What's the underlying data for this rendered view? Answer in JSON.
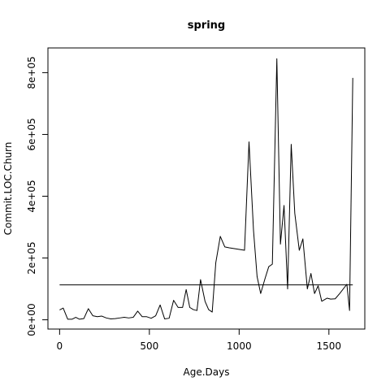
{
  "chart_data": {
    "type": "line",
    "title": "spring",
    "xlabel": "Age.Days",
    "ylabel": "Commit.LOC.Churn",
    "xlim": [
      -65,
      1700
    ],
    "ylim": [
      -30000,
      880000
    ],
    "x_ticks": [
      0,
      500,
      1000,
      1500
    ],
    "x_tick_labels": [
      "0",
      "500",
      "1000",
      "1500"
    ],
    "y_ticks": [
      0,
      200000,
      400000,
      600000,
      800000
    ],
    "y_tick_labels": [
      "0e+00",
      "2e+05",
      "4e+05",
      "6e+05",
      "8e+05"
    ],
    "grid": false,
    "legend": "none",
    "series": [
      {
        "x": [
          0,
          20,
          45,
          70,
          90,
          110,
          135,
          160,
          185,
          210,
          235,
          260,
          285,
          310,
          335,
          360,
          385,
          410,
          435,
          460,
          485,
          510,
          535,
          560,
          585,
          610,
          635,
          660,
          685,
          705,
          725,
          745,
          765,
          785,
          810,
          830,
          850,
          870,
          895,
          920,
          945,
          1030,
          1055,
          1080,
          1100,
          1120,
          1145,
          1165,
          1185,
          1210,
          1230,
          1250,
          1270,
          1290,
          1310,
          1335,
          1355,
          1380,
          1400,
          1420,
          1440,
          1460,
          1490,
          1510,
          1535,
          1560,
          1600,
          1615,
          1633
        ],
        "y": [
          32000,
          38000,
          2000,
          2000,
          8000,
          2000,
          4000,
          36000,
          13000,
          10000,
          12000,
          6000,
          3000,
          4000,
          6000,
          8000,
          6000,
          8000,
          28000,
          10000,
          10000,
          5000,
          13000,
          48000,
          3000,
          5000,
          63000,
          40000,
          40000,
          98000,
          40000,
          33000,
          30000,
          130000,
          60000,
          33000,
          25000,
          185000,
          270000,
          236000,
          233000,
          225000,
          576000,
          290000,
          140000,
          85000,
          135000,
          172000,
          180000,
          845000,
          245000,
          370000,
          100000,
          568000,
          345000,
          225000,
          262000,
          100000,
          150000,
          85000,
          110000,
          60000,
          70000,
          67000,
          68000,
          85000,
          115000,
          30000,
          783000
        ]
      },
      {
        "x": [
          0,
          1633
        ],
        "y": [
          113000,
          113000
        ]
      }
    ]
  }
}
